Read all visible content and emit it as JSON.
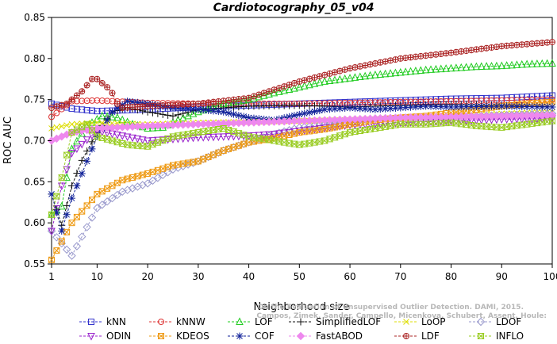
{
  "chart_data": {
    "type": "line",
    "title": "Cardiotocography_05_v04",
    "xlabel": "Neighborhood size",
    "ylabel": "ROC AUC",
    "xlim": [
      1,
      100
    ],
    "ylim": [
      0.55,
      0.85
    ],
    "xticks": [
      1,
      10,
      20,
      30,
      40,
      50,
      60,
      70,
      80,
      90,
      100
    ],
    "yticks": [
      0.55,
      0.6,
      0.65,
      0.7,
      0.75,
      0.8,
      0.85
    ],
    "ytick_labels": [
      "0.55",
      "0.60",
      "0.65",
      "0.70",
      "0.75",
      "0.80",
      "0.85"
    ],
    "grid": false,
    "legend_position": "bottom",
    "credit": [
      "Campos, Zimek, Sander, Campello, Micenkova, Schubert, Assent, Houle:",
      "On the Evaluation of Unsupervised Outlier Detection. DAMI, 2015."
    ],
    "series": [
      {
        "name": "kNN",
        "color": "#3333cc",
        "marker": "square",
        "x": [
          1,
          5,
          10,
          20,
          30,
          40,
          50,
          60,
          70,
          80,
          90,
          100
        ],
        "y": [
          0.745,
          0.739,
          0.736,
          0.738,
          0.741,
          0.743,
          0.745,
          0.747,
          0.749,
          0.751,
          0.752,
          0.755
        ]
      },
      {
        "name": "kNNW",
        "color": "#dd3333",
        "marker": "circle",
        "x": [
          1,
          5,
          10,
          20,
          30,
          40,
          50,
          60,
          70,
          80,
          90,
          100
        ],
        "y": [
          0.729,
          0.748,
          0.749,
          0.746,
          0.745,
          0.745,
          0.745,
          0.746,
          0.747,
          0.748,
          0.749,
          0.75
        ]
      },
      {
        "name": "LOF",
        "color": "#22cc22",
        "marker": "triangle-up",
        "x": [
          1,
          3,
          5,
          8,
          11,
          14,
          17,
          20,
          23,
          26,
          30,
          35,
          40,
          45,
          50,
          55,
          60,
          65,
          70,
          75,
          80,
          85,
          90,
          95,
          100
        ],
        "y": [
          0.61,
          0.62,
          0.69,
          0.718,
          0.73,
          0.728,
          0.72,
          0.715,
          0.716,
          0.725,
          0.735,
          0.745,
          0.75,
          0.758,
          0.765,
          0.772,
          0.776,
          0.78,
          0.783,
          0.786,
          0.788,
          0.79,
          0.791,
          0.793,
          0.794
        ]
      },
      {
        "name": "SimplifiedLOF",
        "color": "#111111",
        "marker": "plus",
        "x": [
          1,
          3,
          5,
          7,
          10,
          13,
          16,
          20,
          25,
          30,
          40,
          50,
          60,
          70,
          80,
          90,
          100
        ],
        "y": [
          0.635,
          0.597,
          0.645,
          0.676,
          0.71,
          0.735,
          0.74,
          0.735,
          0.73,
          0.738,
          0.742,
          0.743,
          0.741,
          0.743,
          0.744,
          0.743,
          0.741
        ]
      },
      {
        "name": "LoOP",
        "color": "#dddd00",
        "marker": "x",
        "x": [
          1,
          5,
          10,
          20,
          30,
          40,
          50,
          60,
          70,
          80,
          90,
          100
        ],
        "y": [
          0.715,
          0.72,
          0.722,
          0.72,
          0.722,
          0.723,
          0.724,
          0.725,
          0.727,
          0.73,
          0.733,
          0.735
        ]
      },
      {
        "name": "LDOF",
        "color": "#9999cc",
        "marker": "diamond",
        "x": [
          1,
          5,
          10,
          15,
          20,
          25,
          30,
          35,
          40,
          45,
          50,
          55,
          60,
          65,
          70,
          75,
          80,
          85,
          90,
          95,
          100
        ],
        "y": [
          0.59,
          0.56,
          0.618,
          0.638,
          0.648,
          0.665,
          0.675,
          0.688,
          0.698,
          0.708,
          0.716,
          0.72,
          0.724,
          0.727,
          0.728,
          0.728,
          0.729,
          0.73,
          0.731,
          0.732,
          0.733
        ]
      },
      {
        "name": "ODIN",
        "color": "#9922cc",
        "marker": "triangle-down",
        "x": [
          1,
          3,
          5,
          10,
          15,
          20,
          25,
          30,
          35,
          40,
          45,
          50,
          60,
          70,
          80,
          90,
          100
        ],
        "y": [
          0.59,
          0.645,
          0.685,
          0.712,
          0.706,
          0.7,
          0.702,
          0.704,
          0.705,
          0.706,
          0.708,
          0.712,
          0.719,
          0.722,
          0.724,
          0.726,
          0.727
        ]
      },
      {
        "name": "KDEOS",
        "color": "#ee9911",
        "marker": "square-x",
        "x": [
          1,
          5,
          10,
          15,
          20,
          25,
          30,
          35,
          40,
          45,
          50,
          55,
          60,
          65,
          70,
          75,
          80,
          85,
          90,
          95,
          100
        ],
        "y": [
          0.555,
          0.6,
          0.635,
          0.652,
          0.66,
          0.67,
          0.675,
          0.688,
          0.698,
          0.703,
          0.71,
          0.714,
          0.72,
          0.725,
          0.728,
          0.73,
          0.734,
          0.738,
          0.742,
          0.745,
          0.747
        ]
      },
      {
        "name": "COF",
        "color": "#112299",
        "marker": "asterisk",
        "x": [
          1,
          3,
          5,
          7,
          10,
          13,
          16,
          20,
          25,
          30,
          35,
          40,
          45,
          50,
          55,
          60,
          65,
          70,
          75,
          80,
          90,
          100
        ],
        "y": [
          0.635,
          0.59,
          0.63,
          0.66,
          0.705,
          0.735,
          0.748,
          0.745,
          0.74,
          0.738,
          0.735,
          0.728,
          0.725,
          0.732,
          0.738,
          0.74,
          0.738,
          0.74,
          0.742,
          0.741,
          0.742,
          0.741
        ]
      },
      {
        "name": "FastABOD",
        "color": "#ee88ee",
        "marker": "diamond-filled",
        "x": [
          1,
          5,
          10,
          20,
          30,
          40,
          50,
          60,
          70,
          80,
          90,
          100
        ],
        "y": [
          0.7,
          0.71,
          0.715,
          0.718,
          0.72,
          0.722,
          0.724,
          0.726,
          0.728,
          0.729,
          0.73,
          0.731
        ]
      },
      {
        "name": "LDF",
        "color": "#aa2222",
        "marker": "circle-plus",
        "x": [
          1,
          4,
          7,
          9,
          10,
          11,
          12,
          13,
          14,
          15,
          20,
          30,
          40,
          50,
          60,
          70,
          80,
          90,
          100
        ],
        "y": [
          0.74,
          0.745,
          0.76,
          0.775,
          0.775,
          0.77,
          0.765,
          0.758,
          0.745,
          0.74,
          0.742,
          0.745,
          0.752,
          0.772,
          0.788,
          0.8,
          0.807,
          0.815,
          0.82
        ]
      },
      {
        "name": "INFLO",
        "color": "#99cc22",
        "marker": "hourglass",
        "x": [
          1,
          3,
          5,
          8,
          10,
          13,
          16,
          20,
          25,
          30,
          35,
          40,
          45,
          50,
          55,
          60,
          65,
          70,
          75,
          80,
          85,
          90,
          95,
          100
        ],
        "y": [
          0.61,
          0.655,
          0.71,
          0.72,
          0.705,
          0.7,
          0.695,
          0.693,
          0.705,
          0.71,
          0.715,
          0.705,
          0.7,
          0.695,
          0.7,
          0.71,
          0.715,
          0.72,
          0.72,
          0.722,
          0.718,
          0.716,
          0.72,
          0.724
        ]
      }
    ],
    "legend": {
      "rows": [
        [
          "kNN",
          "kNNW",
          "LOF",
          "SimplifiedLOF",
          "LoOP",
          "LDOF"
        ],
        [
          "ODIN",
          "KDEOS",
          "COF",
          "FastABOD",
          "LDF",
          "INFLO"
        ]
      ]
    }
  }
}
